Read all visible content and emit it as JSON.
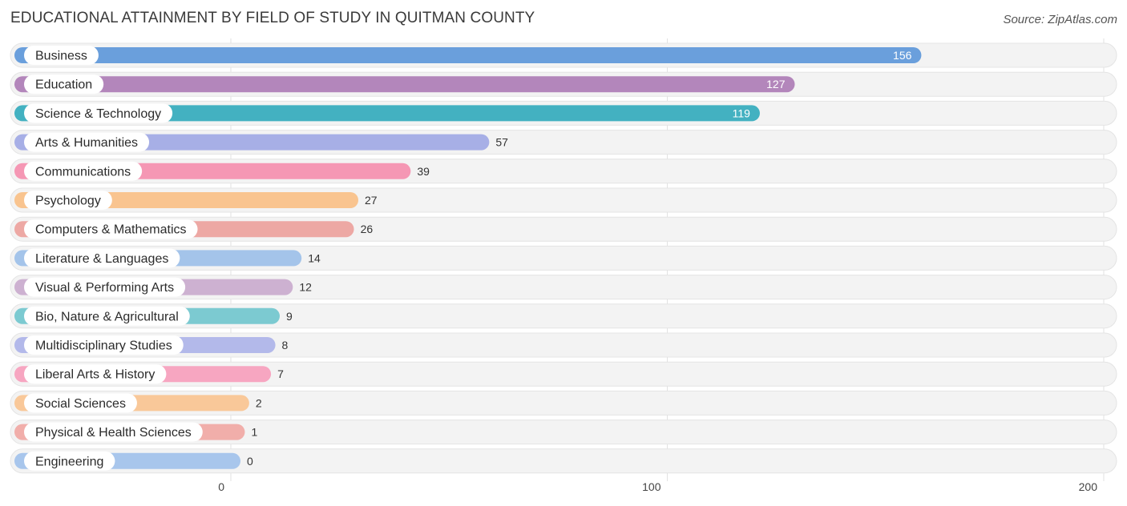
{
  "header": {
    "title": "EDUCATIONAL ATTAINMENT BY FIELD OF STUDY IN QUITMAN COUNTY",
    "source": "Source: ZipAtlas.com"
  },
  "chart_data": {
    "type": "bar",
    "orientation": "horizontal",
    "title": "EDUCATIONAL ATTAINMENT BY FIELD OF STUDY IN QUITMAN COUNTY",
    "xlabel": "",
    "ylabel": "",
    "xlim": [
      0,
      200
    ],
    "xticks": [
      0,
      100,
      200
    ],
    "grid": true,
    "categories": [
      "Business",
      "Education",
      "Science & Technology",
      "Arts & Humanities",
      "Communications",
      "Psychology",
      "Computers & Mathematics",
      "Literature & Languages",
      "Visual & Performing Arts",
      "Bio, Nature & Agricultural",
      "Multidisciplinary Studies",
      "Liberal Arts & History",
      "Social Sciences",
      "Physical & Health Sciences",
      "Engineering"
    ],
    "values": [
      156,
      127,
      119,
      57,
      39,
      27,
      26,
      14,
      12,
      9,
      8,
      7,
      2,
      1,
      0
    ],
    "colors": [
      "#6a9fdc",
      "#b386bb",
      "#43b1c1",
      "#a7afe6",
      "#f597b4",
      "#f9c48f",
      "#eda8a4",
      "#a4c4ea",
      "#cdb1d1",
      "#7ccad1",
      "#b3b9ea",
      "#f7a6c1",
      "#f9c899",
      "#f1aeaa",
      "#a8c6ec"
    ]
  }
}
